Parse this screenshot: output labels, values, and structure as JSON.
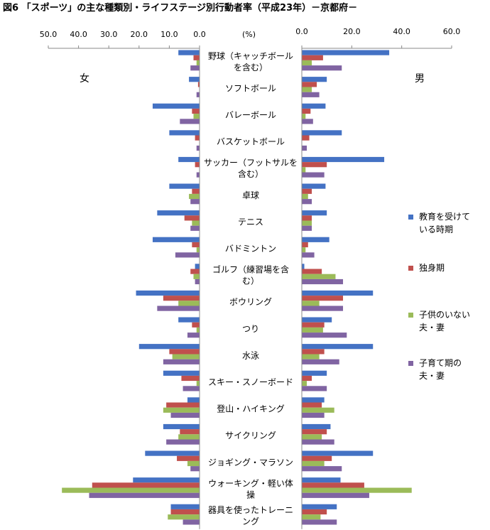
{
  "title": "図6 「スポーツ」の主な種類別・ライフステージ別行動者率（平成23年）－京都府－",
  "colors": [
    "#4472C4",
    "#C0504D",
    "#9BBB59",
    "#8064A2"
  ],
  "chart_data": {
    "type": "bar",
    "orientation": "horizontal",
    "unit": "(%)",
    "left_label": "女",
    "right_label": "男",
    "left_ticks": [
      "50.0",
      "40.0",
      "30.0",
      "20.0",
      "10.0",
      "0.0"
    ],
    "right_ticks": [
      "0.0",
      "20.0",
      "40.0",
      "60.0"
    ],
    "left_xlim": [
      0,
      50
    ],
    "right_xlim": [
      0,
      60
    ],
    "categories": [
      [
        "野球（キャッチボール",
        "を含む）"
      ],
      [
        "ソフトボール"
      ],
      [
        "バレーボール"
      ],
      [
        "バスケットボール"
      ],
      [
        "サッカー（フットサルを",
        "含む）"
      ],
      [
        "卓球"
      ],
      [
        "テニス"
      ],
      [
        "バドミントン"
      ],
      [
        "ゴルフ（練習場を含",
        "む）"
      ],
      [
        "ボウリング"
      ],
      [
        "つり"
      ],
      [
        "水泳"
      ],
      [
        "スキー・スノーボード"
      ],
      [
        "登山・ハイキング"
      ],
      [
        "サイクリング"
      ],
      [
        "ジョギング・マラソン"
      ],
      [
        "ウォーキング・軽い体",
        "操"
      ],
      [
        "器具を使ったトレーニ",
        "ング"
      ]
    ],
    "series": [
      {
        "name": "教育を受けている時期",
        "legend": [
          "教育を受けて",
          "いる時期"
        ],
        "female": [
          7.0,
          3.5,
          15.5,
          10.0,
          7.0,
          10.0,
          14.0,
          15.5,
          1.5,
          21.0,
          7.0,
          20.0,
          12.0,
          4.0,
          12.0,
          18.0,
          22.0,
          9.5
        ],
        "male": [
          35.0,
          10.0,
          9.5,
          16.0,
          33.0,
          9.5,
          10.0,
          11.0,
          1.0,
          28.5,
          12.0,
          28.5,
          10.0,
          9.0,
          11.5,
          28.5,
          15.5,
          14.0
        ]
      },
      {
        "name": "独身期",
        "legend": [
          "独身期"
        ],
        "female": [
          2.0,
          0.5,
          2.5,
          1.5,
          1.5,
          2.5,
          5.0,
          2.5,
          3.0,
          12.0,
          2.5,
          10.0,
          6.0,
          11.0,
          6.5,
          7.5,
          35.5,
          9.5
        ],
        "male": [
          8.5,
          6.0,
          3.5,
          3.0,
          10.0,
          4.0,
          4.0,
          2.5,
          8.0,
          16.5,
          9.0,
          9.0,
          4.0,
          8.0,
          10.0,
          12.0,
          25.0,
          10.0
        ]
      },
      {
        "name": "子供のいない夫・妻",
        "legend": [
          "子供のいない",
          "夫・妻"
        ],
        "female": [
          1.0,
          0.0,
          2.0,
          0.0,
          0.0,
          3.5,
          2.5,
          1.0,
          2.0,
          7.0,
          1.0,
          9.0,
          1.0,
          12.0,
          7.0,
          4.0,
          45.5,
          10.5
        ],
        "male": [
          4.0,
          4.0,
          1.5,
          0.0,
          1.5,
          2.5,
          4.0,
          1.5,
          13.5,
          7.0,
          8.5,
          7.0,
          2.0,
          13.0,
          8.0,
          9.0,
          44.0,
          7.5
        ]
      },
      {
        "name": "子育て期の夫・妻",
        "legend": [
          "子育て期の",
          "夫・妻"
        ],
        "female": [
          3.0,
          1.0,
          6.5,
          1.0,
          1.0,
          3.0,
          3.0,
          8.0,
          1.5,
          14.0,
          4.0,
          12.0,
          5.5,
          9.5,
          11.0,
          3.0,
          36.5,
          5.5
        ],
        "male": [
          16.0,
          7.0,
          4.5,
          2.0,
          9.0,
          4.0,
          4.0,
          5.0,
          16.5,
          16.5,
          18.0,
          15.0,
          10.0,
          9.0,
          13.0,
          16.0,
          27.0,
          14.0
        ]
      }
    ]
  }
}
